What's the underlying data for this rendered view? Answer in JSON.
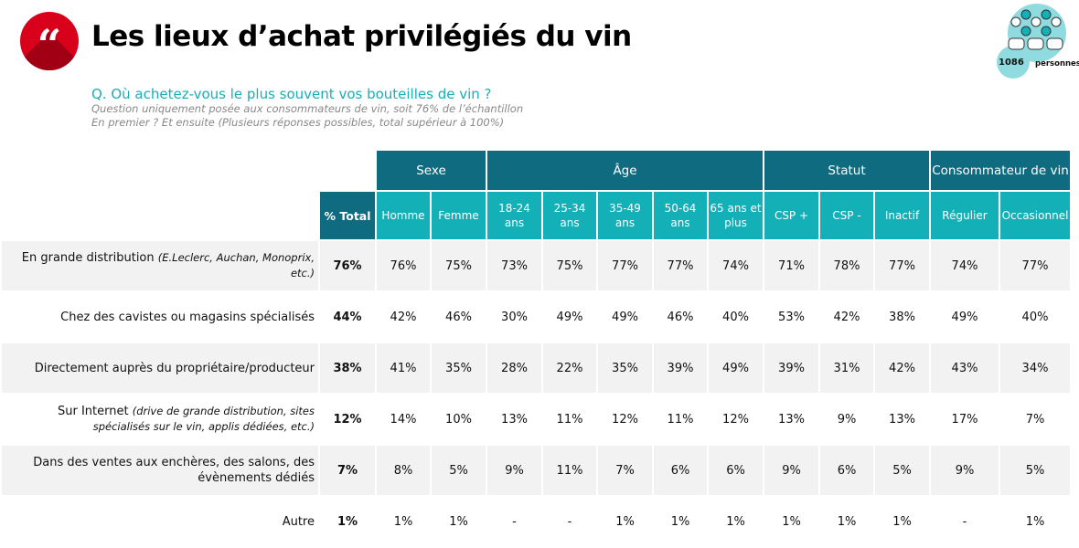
{
  "title": "Les lieux d’achat privilégiés du vin",
  "question": "Q. Où achetez-vous le plus souvent vos bouteilles de vin ?",
  "note1": "Question uniquement posée aux consommateurs de vin, soit 76% de l’échantillon",
  "note2": "En premier ? Et ensuite (Plusieurs réponses possibles, total supérieur à 100%)",
  "badge": {
    "count": "1086",
    "label": "personnes"
  },
  "colors": {
    "dark": "#0e6b80",
    "light": "#14b0b8",
    "accent": "#d9001b"
  },
  "groups": [
    {
      "label": "Sexe",
      "span": 2
    },
    {
      "label": "Âge",
      "span": 5
    },
    {
      "label": "Statut",
      "span": 3
    },
    {
      "label": "Consommateur de vin",
      "span": 2
    }
  ],
  "total_label": "% Total",
  "columns": [
    "Homme",
    "Femme",
    "18-24 ans",
    "25-34 ans",
    "35-49 ans",
    "50-64 ans",
    "65 ans et plus",
    "CSP +",
    "CSP -",
    "Inactif",
    "Régulier",
    "Occasionnel"
  ],
  "rows": [
    {
      "label": "En grande distribution",
      "detail": "(E.Leclerc, Auchan, Monoprix, etc.)",
      "total": "76%",
      "values": [
        "76%",
        "75%",
        "73%",
        "75%",
        "77%",
        "77%",
        "74%",
        "71%",
        "78%",
        "77%",
        "74%",
        "77%"
      ]
    },
    {
      "label": "Chez des cavistes ou magasins spécialisés",
      "detail": "",
      "total": "44%",
      "values": [
        "42%",
        "46%",
        "30%",
        "49%",
        "49%",
        "46%",
        "40%",
        "53%",
        "42%",
        "38%",
        "49%",
        "40%"
      ]
    },
    {
      "label": "Directement auprès du propriétaire/producteur",
      "detail": "",
      "total": "38%",
      "values": [
        "41%",
        "35%",
        "28%",
        "22%",
        "35%",
        "39%",
        "49%",
        "39%",
        "31%",
        "42%",
        "43%",
        "34%"
      ]
    },
    {
      "label": "Sur Internet",
      "detail": "(drive de grande distribution, sites spécialisés sur le vin, applis dédiées, etc.)",
      "total": "12%",
      "values": [
        "14%",
        "10%",
        "13%",
        "11%",
        "12%",
        "11%",
        "12%",
        "13%",
        "9%",
        "13%",
        "17%",
        "7%"
      ]
    },
    {
      "label": "Dans des ventes aux enchères, des salons, des évènements dédiés",
      "detail": "",
      "total": "7%",
      "values": [
        "8%",
        "5%",
        "9%",
        "11%",
        "7%",
        "6%",
        "6%",
        "9%",
        "6%",
        "5%",
        "9%",
        "5%"
      ]
    },
    {
      "label": "Autre",
      "detail": "",
      "total": "1%",
      "values": [
        "1%",
        "1%",
        "-",
        "-",
        "1%",
        "1%",
        "1%",
        "1%",
        "1%",
        "1%",
        "-",
        "1%"
      ]
    }
  ]
}
